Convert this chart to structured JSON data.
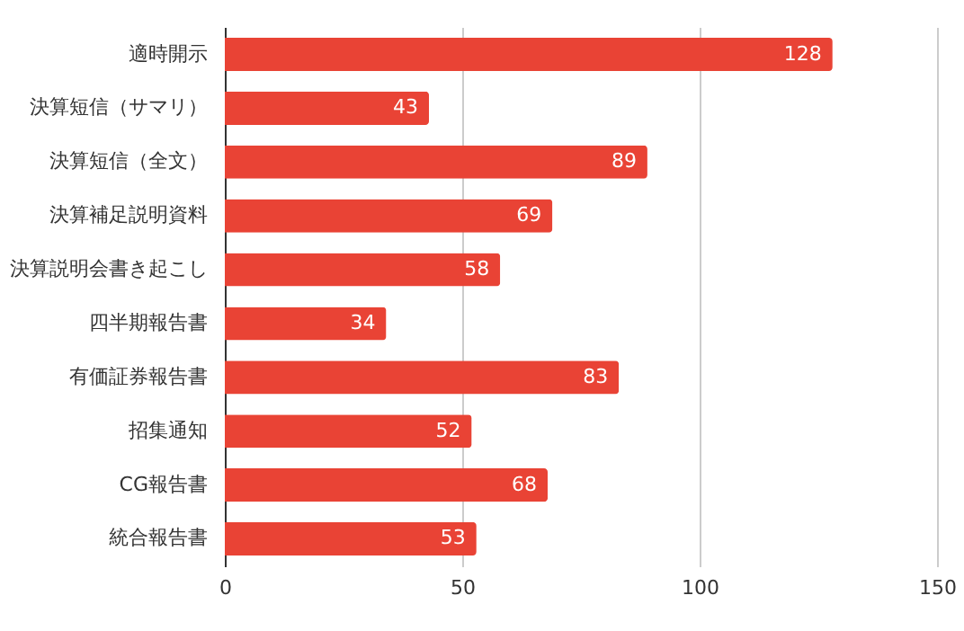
{
  "chart_data": {
    "type": "bar",
    "orientation": "horizontal",
    "categories": [
      "適時開示",
      "決算短信（サマリ）",
      "決算短信（全文）",
      "決算補足説明資料",
      "決算説明会書き起こし",
      "四半期報告書",
      "有価証券報告書",
      "招集通知",
      "CG報告書",
      "統合報告書"
    ],
    "values": [
      128,
      43,
      89,
      69,
      58,
      34,
      83,
      52,
      68,
      53
    ],
    "color": "#e94335",
    "xlim": [
      0,
      150
    ],
    "xticks": [
      0,
      50,
      100,
      150
    ],
    "grid": "x",
    "data_labels": true
  }
}
